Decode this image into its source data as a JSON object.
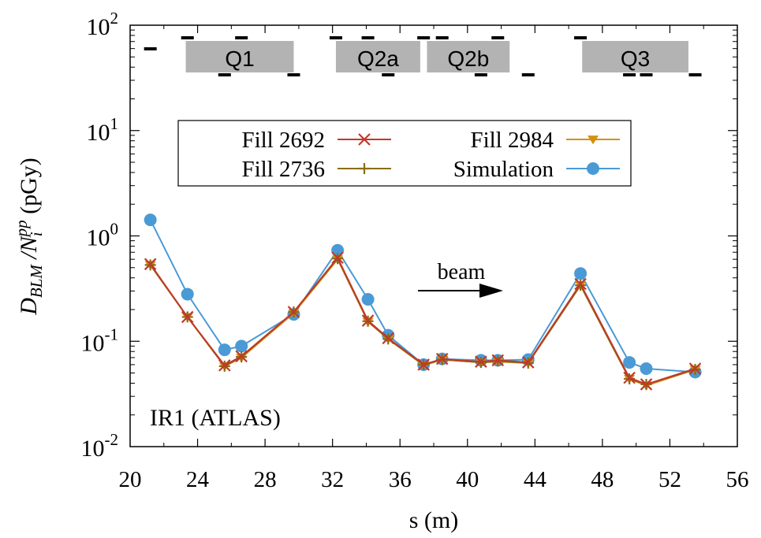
{
  "chart_data": {
    "type": "line",
    "annotation_label": "IR1 (ATLAS)",
    "xlabel": "s (m)",
    "ylabel_parts": {
      "d": "D",
      "d_sub": "BLM",
      "slash": " /N",
      "n_sub": "i",
      "n_sup": "pp",
      "unit": " (pGy)"
    },
    "x_ticks": [
      "20",
      "24",
      "28",
      "32",
      "36",
      "40",
      "44",
      "48",
      "52",
      "56"
    ],
    "y_ticks": [
      {
        "base": "10",
        "exp": "-2"
      },
      {
        "base": "10",
        "exp": "-1"
      },
      {
        "base": "10",
        "exp": "0"
      },
      {
        "base": "10",
        "exp": "1"
      },
      {
        "base": "10",
        "exp": "2"
      }
    ],
    "xlim": [
      20,
      56
    ],
    "ylim": [
      0.01,
      100
    ],
    "y_scale": "log",
    "grid": false,
    "legend_placement": "upper middle",
    "magnets": [
      {
        "label": "Q1",
        "s_start": 23.3,
        "s_end": 29.7
      },
      {
        "label": "Q2a",
        "s_start": 32.2,
        "s_end": 37.2
      },
      {
        "label": "Q2b",
        "s_start": 37.6,
        "s_end": 42.5
      },
      {
        "label": "Q3",
        "s_start": 46.8,
        "s_end": 53.1
      }
    ],
    "beam_arrow_label": "beam",
    "colors": {
      "fill_2692": "#c0392b",
      "fill_2736": "#8b6d0f",
      "fill_2984": "#d4900f",
      "simulation": "#4a9ad6",
      "magnet": "#b3b3b3"
    },
    "series": [
      {
        "name": "Fill 2692",
        "marker": "x",
        "x": [
          21.2,
          23.4,
          25.6,
          26.6,
          29.7,
          32.3,
          34.1,
          35.3,
          37.4,
          38.5,
          40.8,
          41.8,
          43.6,
          46.7,
          49.6,
          50.6,
          53.5
        ],
        "y": [
          0.54,
          0.17,
          0.059,
          0.072,
          0.19,
          0.62,
          0.157,
          0.107,
          0.06,
          0.068,
          0.064,
          0.066,
          0.063,
          0.35,
          0.045,
          0.039,
          0.055
        ]
      },
      {
        "name": "Fill 2736",
        "marker": "+",
        "x": [
          21.2,
          23.4,
          25.6,
          26.6,
          29.7,
          32.3,
          34.1,
          35.3,
          37.4,
          38.5,
          40.8,
          41.8,
          43.6,
          46.7,
          49.6,
          50.6,
          53.5
        ],
        "y": [
          0.53,
          0.17,
          0.058,
          0.071,
          0.19,
          0.61,
          0.155,
          0.105,
          0.06,
          0.067,
          0.063,
          0.065,
          0.062,
          0.34,
          0.044,
          0.039,
          0.054
        ]
      },
      {
        "name": "Fill 2984",
        "marker": "triangle-down",
        "x": [
          21.2,
          23.4,
          25.6,
          26.6,
          29.7,
          32.3,
          34.1,
          35.3,
          37.4,
          38.5,
          40.8,
          41.8,
          43.6,
          46.7,
          49.6,
          50.6,
          53.5
        ],
        "y": [
          0.53,
          0.17,
          0.058,
          0.07,
          0.185,
          0.6,
          0.153,
          0.105,
          0.059,
          0.067,
          0.063,
          0.064,
          0.062,
          0.34,
          0.044,
          0.038,
          0.054
        ]
      },
      {
        "name": "Simulation",
        "marker": "circle",
        "x": [
          21.2,
          23.4,
          25.6,
          26.6,
          29.7,
          32.3,
          34.1,
          35.3,
          37.4,
          38.5,
          40.8,
          41.8,
          43.6,
          46.7,
          49.6,
          50.6,
          53.5
        ],
        "y": [
          1.42,
          0.28,
          0.083,
          0.09,
          0.18,
          0.73,
          0.25,
          0.114,
          0.06,
          0.068,
          0.066,
          0.066,
          0.067,
          0.44,
          0.063,
          0.055,
          0.051
        ]
      }
    ]
  }
}
